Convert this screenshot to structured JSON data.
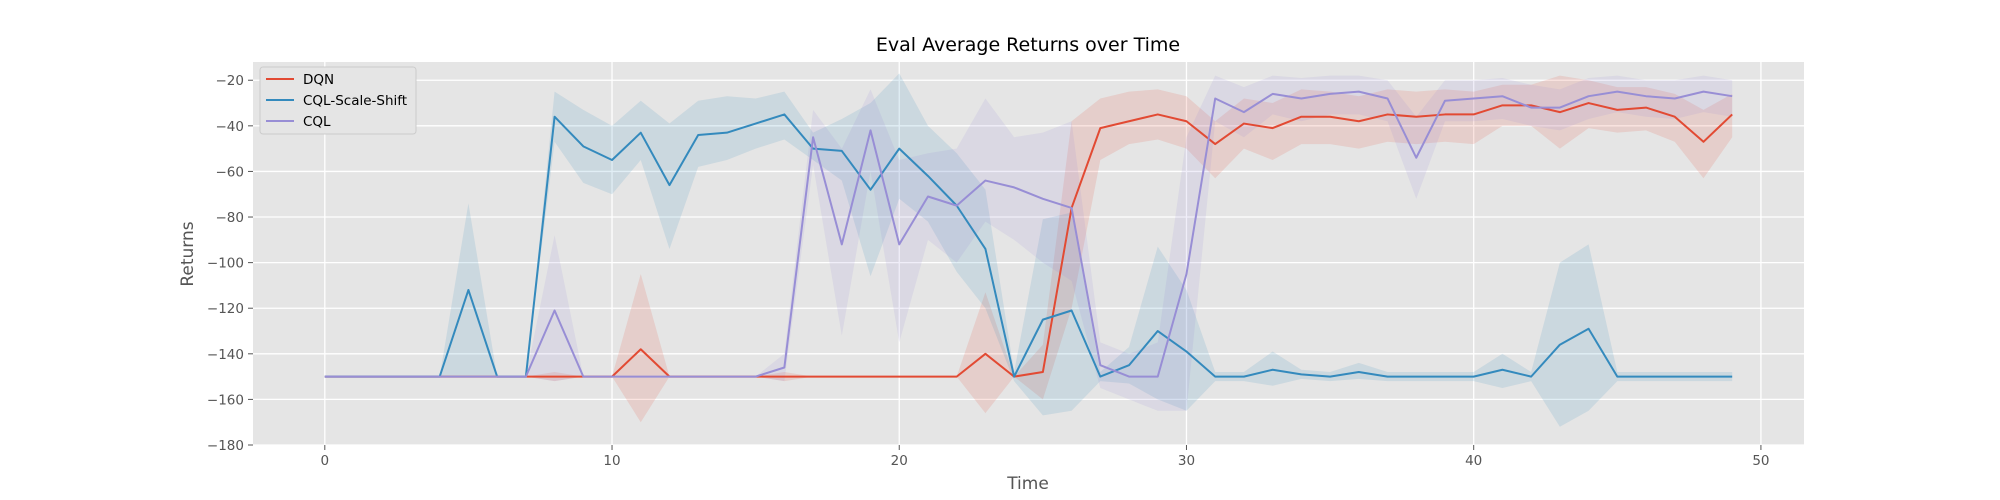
{
  "chart_data": {
    "type": "line",
    "title": "Eval Average Returns over Time",
    "xlabel": "Time",
    "ylabel": "Returns",
    "xlim": [
      -2.5,
      51.5
    ],
    "ylim": [
      -180,
      -12
    ],
    "xticks": [
      0,
      10,
      20,
      30,
      40,
      50
    ],
    "yticks": [
      -20,
      -40,
      -60,
      -80,
      -100,
      -120,
      -140,
      -160,
      -180
    ],
    "xtick_labels": [
      "0",
      "10",
      "20",
      "30",
      "40",
      "50"
    ],
    "ytick_labels": [
      "−20",
      "−40",
      "−60",
      "−80",
      "−100",
      "−120",
      "−140",
      "−160",
      "−180"
    ],
    "grid": true,
    "legend_position": "top-left",
    "x": [
      0,
      1,
      2,
      3,
      4,
      5,
      6,
      7,
      8,
      9,
      10,
      11,
      12,
      13,
      14,
      15,
      16,
      17,
      18,
      19,
      20,
      21,
      22,
      23,
      24,
      25,
      26,
      27,
      28,
      29,
      30,
      31,
      32,
      33,
      34,
      35,
      36,
      37,
      38,
      39,
      40,
      41,
      42,
      43,
      44,
      45,
      46,
      47,
      48,
      49
    ],
    "series": [
      {
        "name": "DQN",
        "color": "#E24A33",
        "values": [
          -150,
          -150,
          -150,
          -150,
          -150,
          -150,
          -150,
          -150,
          -150,
          -150,
          -150,
          -138,
          -150,
          -150,
          -150,
          -150,
          -150,
          -150,
          -150,
          -150,
          -150,
          -150,
          -150,
          -140,
          -150,
          -148,
          -76,
          -41,
          -38,
          -35,
          -38,
          -48,
          -39,
          -41,
          -36,
          -36,
          -38,
          -35,
          -36,
          -35,
          -35,
          -31,
          -31,
          -34,
          -30,
          -33,
          -32,
          -36,
          -47,
          -35
        ],
        "band": [
          [
            -150,
            -150
          ],
          [
            -150,
            -150
          ],
          [
            -150,
            -150
          ],
          [
            -150,
            -150
          ],
          [
            -150,
            -150
          ],
          [
            -150,
            -150
          ],
          [
            -150,
            -150
          ],
          [
            -150,
            -150
          ],
          [
            -152,
            -148
          ],
          [
            -150,
            -150
          ],
          [
            -150,
            -150
          ],
          [
            -170,
            -105
          ],
          [
            -150,
            -150
          ],
          [
            -150,
            -150
          ],
          [
            -150,
            -150
          ],
          [
            -150,
            -150
          ],
          [
            -152,
            -148
          ],
          [
            -150,
            -150
          ],
          [
            -150,
            -150
          ],
          [
            -150,
            -150
          ],
          [
            -150,
            -150
          ],
          [
            -150,
            -150
          ],
          [
            -150,
            -150
          ],
          [
            -166,
            -113
          ],
          [
            -150,
            -150
          ],
          [
            -160,
            -136
          ],
          [
            -120,
            -38
          ],
          [
            -55,
            -28
          ],
          [
            -48,
            -25
          ],
          [
            -46,
            -24
          ],
          [
            -50,
            -27
          ],
          [
            -63,
            -38
          ],
          [
            -50,
            -28
          ],
          [
            -55,
            -30
          ],
          [
            -48,
            -24
          ],
          [
            -48,
            -25
          ],
          [
            -50,
            -27
          ],
          [
            -47,
            -24
          ],
          [
            -48,
            -25
          ],
          [
            -47,
            -24
          ],
          [
            -48,
            -25
          ],
          [
            -40,
            -22
          ],
          [
            -40,
            -22
          ],
          [
            -50,
            -18
          ],
          [
            -41,
            -20
          ],
          [
            -43,
            -23
          ],
          [
            -42,
            -23
          ],
          [
            -47,
            -26
          ],
          [
            -63,
            -33
          ],
          [
            -45,
            -26
          ]
        ]
      },
      {
        "name": "CQL-Scale-Shift",
        "color": "#348ABD",
        "values": [
          -150,
          -150,
          -150,
          -150,
          -150,
          -112,
          -150,
          -150,
          -36,
          -49,
          -55,
          -43,
          -66,
          -44,
          -43,
          -39,
          -35,
          -50,
          -51,
          -68,
          -50,
          -62,
          -75,
          -94,
          -150,
          -125,
          -121,
          -150,
          -145,
          -130,
          -139,
          -150,
          -150,
          -147,
          -149,
          -150,
          -148,
          -150,
          -150,
          -150,
          -150,
          -147,
          -150,
          -136,
          -129,
          -150,
          -150,
          -150,
          -150,
          -150
        ],
        "band": [
          [
            -150,
            -150
          ],
          [
            -150,
            -150
          ],
          [
            -150,
            -150
          ],
          [
            -150,
            -150
          ],
          [
            -150,
            -150
          ],
          [
            -150,
            -74
          ],
          [
            -150,
            -150
          ],
          [
            -150,
            -150
          ],
          [
            -47,
            -25
          ],
          [
            -65,
            -33
          ],
          [
            -70,
            -40
          ],
          [
            -55,
            -29
          ],
          [
            -94,
            -39
          ],
          [
            -58,
            -29
          ],
          [
            -55,
            -27
          ],
          [
            -50,
            -28
          ],
          [
            -46,
            -25
          ],
          [
            -55,
            -43
          ],
          [
            -64,
            -37
          ],
          [
            -106,
            -30
          ],
          [
            -72,
            -17
          ],
          [
            -82,
            -40
          ],
          [
            -104,
            -52
          ],
          [
            -120,
            -68
          ],
          [
            -152,
            -148
          ],
          [
            -167,
            -81
          ],
          [
            -165,
            -78
          ],
          [
            -152,
            -148
          ],
          [
            -153,
            -137
          ],
          [
            -160,
            -93
          ],
          [
            -165,
            -112
          ],
          [
            -152,
            -148
          ],
          [
            -152,
            -148
          ],
          [
            -154,
            -139
          ],
          [
            -151,
            -147
          ],
          [
            -152,
            -148
          ],
          [
            -151,
            -144
          ],
          [
            -152,
            -148
          ],
          [
            -152,
            -148
          ],
          [
            -152,
            -148
          ],
          [
            -152,
            -148
          ],
          [
            -155,
            -140
          ],
          [
            -152,
            -148
          ],
          [
            -172,
            -100
          ],
          [
            -165,
            -92
          ],
          [
            -152,
            -148
          ],
          [
            -152,
            -148
          ],
          [
            -152,
            -148
          ],
          [
            -152,
            -148
          ],
          [
            -152,
            -148
          ]
        ]
      },
      {
        "name": "CQL",
        "color": "#988ED5",
        "values": [
          -150,
          -150,
          -150,
          -150,
          -150,
          -150,
          -150,
          -150,
          -121,
          -150,
          -150,
          -150,
          -150,
          -150,
          -150,
          -150,
          -146,
          -45,
          -92,
          -42,
          -92,
          -71,
          -75,
          -64,
          -67,
          -72,
          -76,
          -145,
          -150,
          -150,
          -105,
          -28,
          -34,
          -26,
          -28,
          -26,
          -25,
          -28,
          -54,
          -29,
          -28,
          -27,
          -32,
          -32,
          -27,
          -25,
          -27,
          -28,
          -25,
          -27
        ],
        "band": [
          [
            -150,
            -150
          ],
          [
            -150,
            -150
          ],
          [
            -150,
            -150
          ],
          [
            -150,
            -150
          ],
          [
            -150,
            -150
          ],
          [
            -150,
            -150
          ],
          [
            -150,
            -150
          ],
          [
            -150,
            -150
          ],
          [
            -152,
            -88
          ],
          [
            -150,
            -150
          ],
          [
            -150,
            -150
          ],
          [
            -150,
            -150
          ],
          [
            -150,
            -150
          ],
          [
            -150,
            -150
          ],
          [
            -150,
            -150
          ],
          [
            -150,
            -150
          ],
          [
            -152,
            -140
          ],
          [
            -57,
            -33
          ],
          [
            -132,
            -50
          ],
          [
            -60,
            -24
          ],
          [
            -135,
            -55
          ],
          [
            -90,
            -52
          ],
          [
            -100,
            -50
          ],
          [
            -82,
            -28
          ],
          [
            -90,
            -45
          ],
          [
            -100,
            -43
          ],
          [
            -108,
            -38
          ],
          [
            -155,
            -135
          ],
          [
            -160,
            -140
          ],
          [
            -165,
            -135
          ],
          [
            -165,
            -45
          ],
          [
            -38,
            -18
          ],
          [
            -45,
            -23
          ],
          [
            -35,
            -18
          ],
          [
            -38,
            -19
          ],
          [
            -35,
            -18
          ],
          [
            -35,
            -18
          ],
          [
            -38,
            -20
          ],
          [
            -72,
            -36
          ],
          [
            -38,
            -20
          ],
          [
            -38,
            -20
          ],
          [
            -37,
            -19
          ],
          [
            -40,
            -22
          ],
          [
            -42,
            -24
          ],
          [
            -37,
            -19
          ],
          [
            -34,
            -18
          ],
          [
            -36,
            -20
          ],
          [
            -37,
            -20
          ],
          [
            -34,
            -18
          ],
          [
            -36,
            -20
          ]
        ]
      }
    ]
  }
}
